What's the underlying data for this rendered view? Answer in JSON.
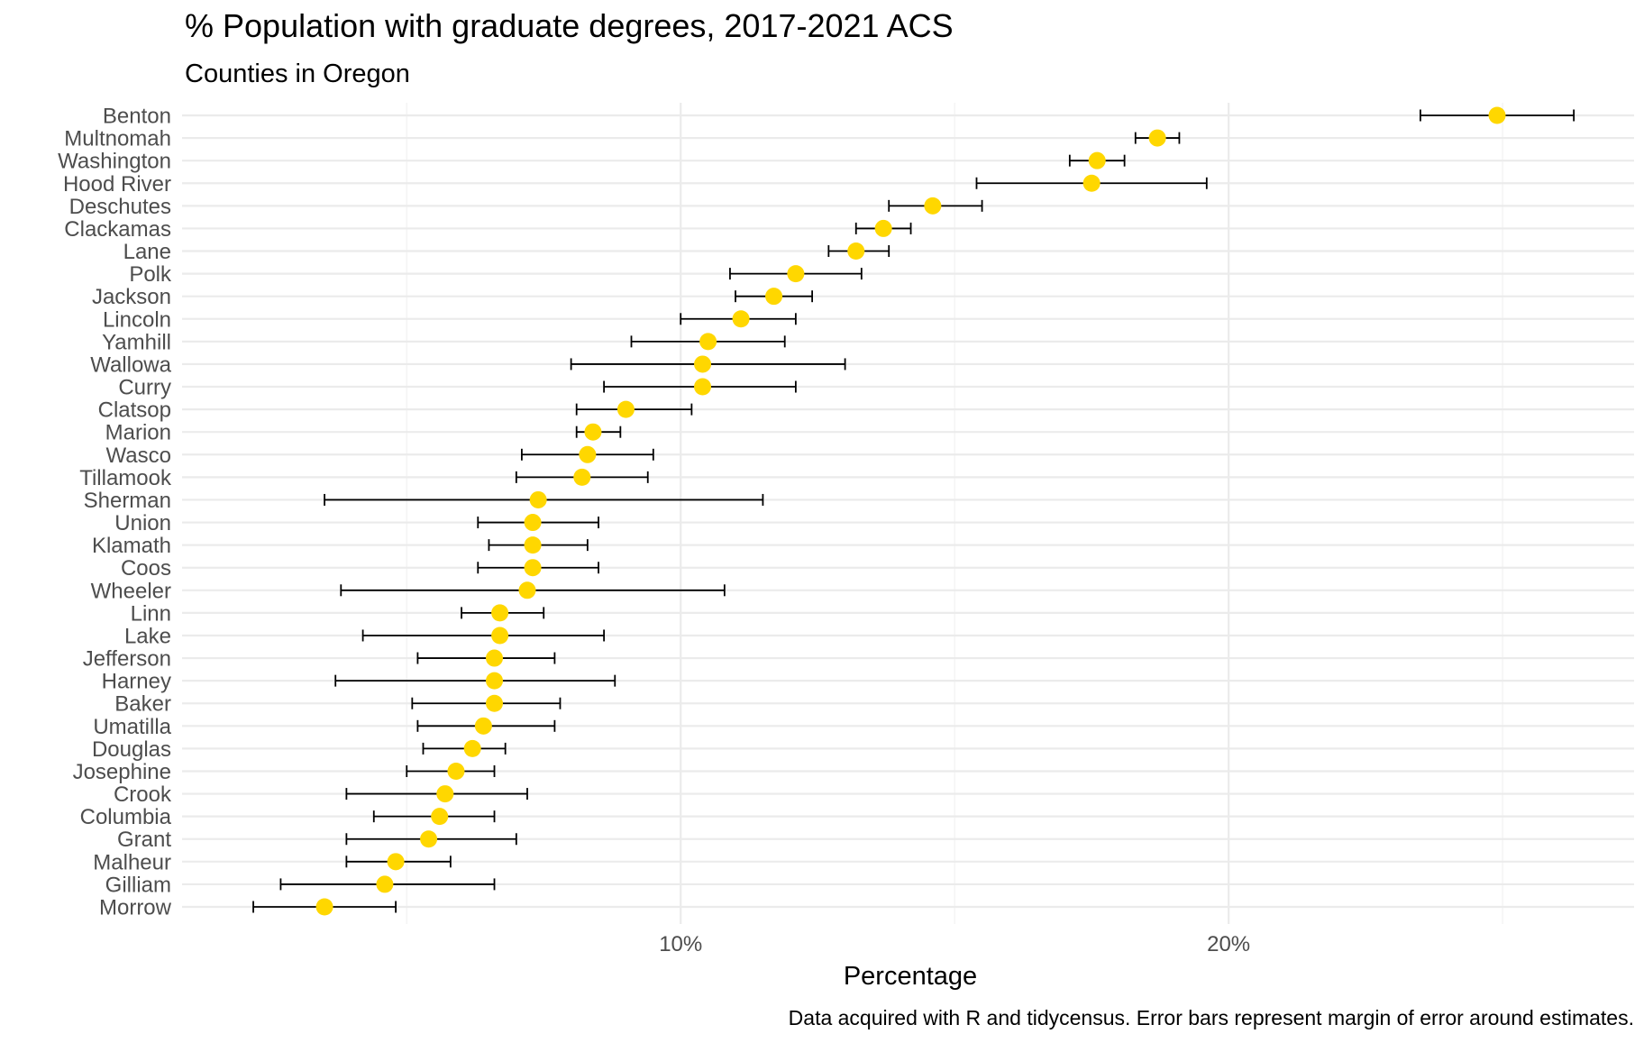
{
  "chart_data": {
    "type": "scatter",
    "title": "% Population with graduate degrees, 2017-2021 ACS",
    "subtitle": "Counties in Oregon",
    "xlabel": "Percentage",
    "ylabel": "",
    "caption": "Data acquired with R and tidycensus. Error bars represent margin of error around estimates.",
    "x_tick_values": [
      10,
      20
    ],
    "x_tick_labels": [
      "10%",
      "20%"
    ],
    "xlim": [
      0.9,
      27.4
    ],
    "grid": true,
    "legend": "none",
    "point_color": "#FFD700",
    "errorbar_color": "#000000",
    "categories": [
      "Benton",
      "Multnomah",
      "Washington",
      "Hood River",
      "Deschutes",
      "Clackamas",
      "Lane",
      "Polk",
      "Jackson",
      "Lincoln",
      "Yamhill",
      "Wallowa",
      "Curry",
      "Clatsop",
      "Marion",
      "Wasco",
      "Tillamook",
      "Sherman",
      "Union",
      "Klamath",
      "Coos",
      "Wheeler",
      "Linn",
      "Lake",
      "Jefferson",
      "Harney",
      "Baker",
      "Umatilla",
      "Douglas",
      "Josephine",
      "Crook",
      "Columbia",
      "Grant",
      "Malheur",
      "Gilliam",
      "Morrow"
    ],
    "series": [
      {
        "estimate": [
          24.9,
          18.7,
          17.6,
          17.5,
          14.6,
          13.7,
          13.2,
          12.1,
          11.7,
          11.1,
          10.5,
          10.4,
          10.4,
          9.0,
          8.4,
          8.3,
          8.2,
          7.4,
          7.3,
          7.3,
          7.3,
          7.2,
          6.7,
          6.7,
          6.6,
          6.6,
          6.6,
          6.4,
          6.2,
          5.9,
          5.7,
          5.6,
          5.4,
          4.8,
          4.6,
          3.5
        ],
        "lower": [
          23.5,
          18.3,
          17.1,
          15.4,
          13.8,
          13.2,
          12.7,
          10.9,
          11.0,
          10.0,
          9.1,
          8.0,
          8.6,
          8.1,
          8.1,
          7.1,
          7.0,
          3.5,
          6.3,
          6.5,
          6.3,
          3.8,
          6.0,
          4.2,
          5.2,
          3.7,
          5.1,
          5.2,
          5.3,
          5.0,
          3.9,
          4.4,
          3.9,
          3.9,
          2.7,
          2.2
        ],
        "upper": [
          26.3,
          19.1,
          18.1,
          19.6,
          15.5,
          14.2,
          13.8,
          13.3,
          12.4,
          12.1,
          11.9,
          13.0,
          12.1,
          10.2,
          8.9,
          9.5,
          9.4,
          11.5,
          8.5,
          8.3,
          8.5,
          10.8,
          7.5,
          8.6,
          7.7,
          8.8,
          7.8,
          7.7,
          6.8,
          6.6,
          7.2,
          6.6,
          7.0,
          5.8,
          6.6,
          4.8
        ]
      }
    ]
  }
}
